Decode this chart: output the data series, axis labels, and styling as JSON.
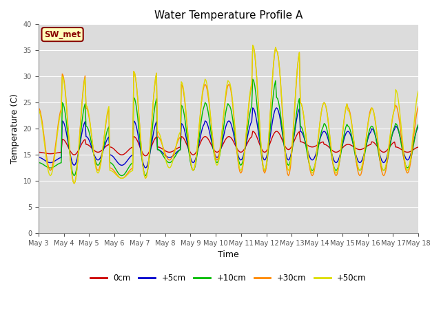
{
  "title": "Water Temperature Profile A",
  "xlabel": "Time",
  "ylabel": "Temperature (C)",
  "ylim": [
    0,
    40
  ],
  "yticks": [
    0,
    5,
    10,
    15,
    20,
    25,
    30,
    35,
    40
  ],
  "bg_color": "#dcdcdc",
  "fig_color": "#ffffff",
  "annotation_text": "SW_met",
  "annotation_bg": "#ffffbb",
  "annotation_border": "#880000",
  "colors": {
    "0cm": "#cc0000",
    "+5cm": "#0000cc",
    "+10cm": "#00bb00",
    "+30cm": "#ff8800",
    "+50cm": "#dddd00"
  },
  "x_tick_labels": [
    "May 3",
    "May 4",
    "May 5",
    "May 6",
    "May 7",
    "May 8",
    "May 9",
    "May 10",
    "May 11",
    "May 12",
    "May 13",
    "May 14",
    "May 15",
    "May 16",
    "May 17",
    "May 18"
  ],
  "linewidth": 1.0
}
